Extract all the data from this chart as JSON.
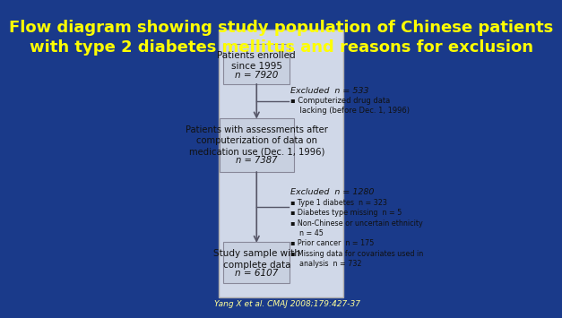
{
  "title": "Flow diagram showing study population of Chinese patients\nwith type 2 diabetes mellitus and reasons for exclusion",
  "title_color": "#FFFF00",
  "title_fontsize": 13,
  "background_color": "#1a3a8a",
  "diagram_bg": "#d0d8e8",
  "box_bg": "#c8d0e0",
  "box_edge": "#888899",
  "box1_text": "Patients enrolled\nsince 1995\nn = 7920",
  "box2_text": "Patients with assessments after\ncomputerization of data on\nmedication use (Dec. 1, 1996)\nn = 7387",
  "box3_text": "Study sample with\ncomplete data\nn = 6107",
  "excl1_title": "Excluded  n = 533",
  "excl1_items": [
    "▪ Computerized drug data\n    lacking (before Dec. 1, 1996)"
  ],
  "excl2_title": "Excluded  n = 1280",
  "excl2_items": [
    "▪ Type 1 diabetes  n = 323",
    "▪ Diabetes type missing  n = 5",
    "▪ Non-Chinese or uncertain ethnicity\n    n = 45",
    "▪ Prior cancer  n = 175",
    "▪ Missing data for covariates used in\n    analysis  n = 732"
  ],
  "citation": "Yang X et al. CMAJ 2008;179:427-37",
  "citation_color": "#FFFF99",
  "arrow_color": "#555566",
  "text_color": "#111111"
}
